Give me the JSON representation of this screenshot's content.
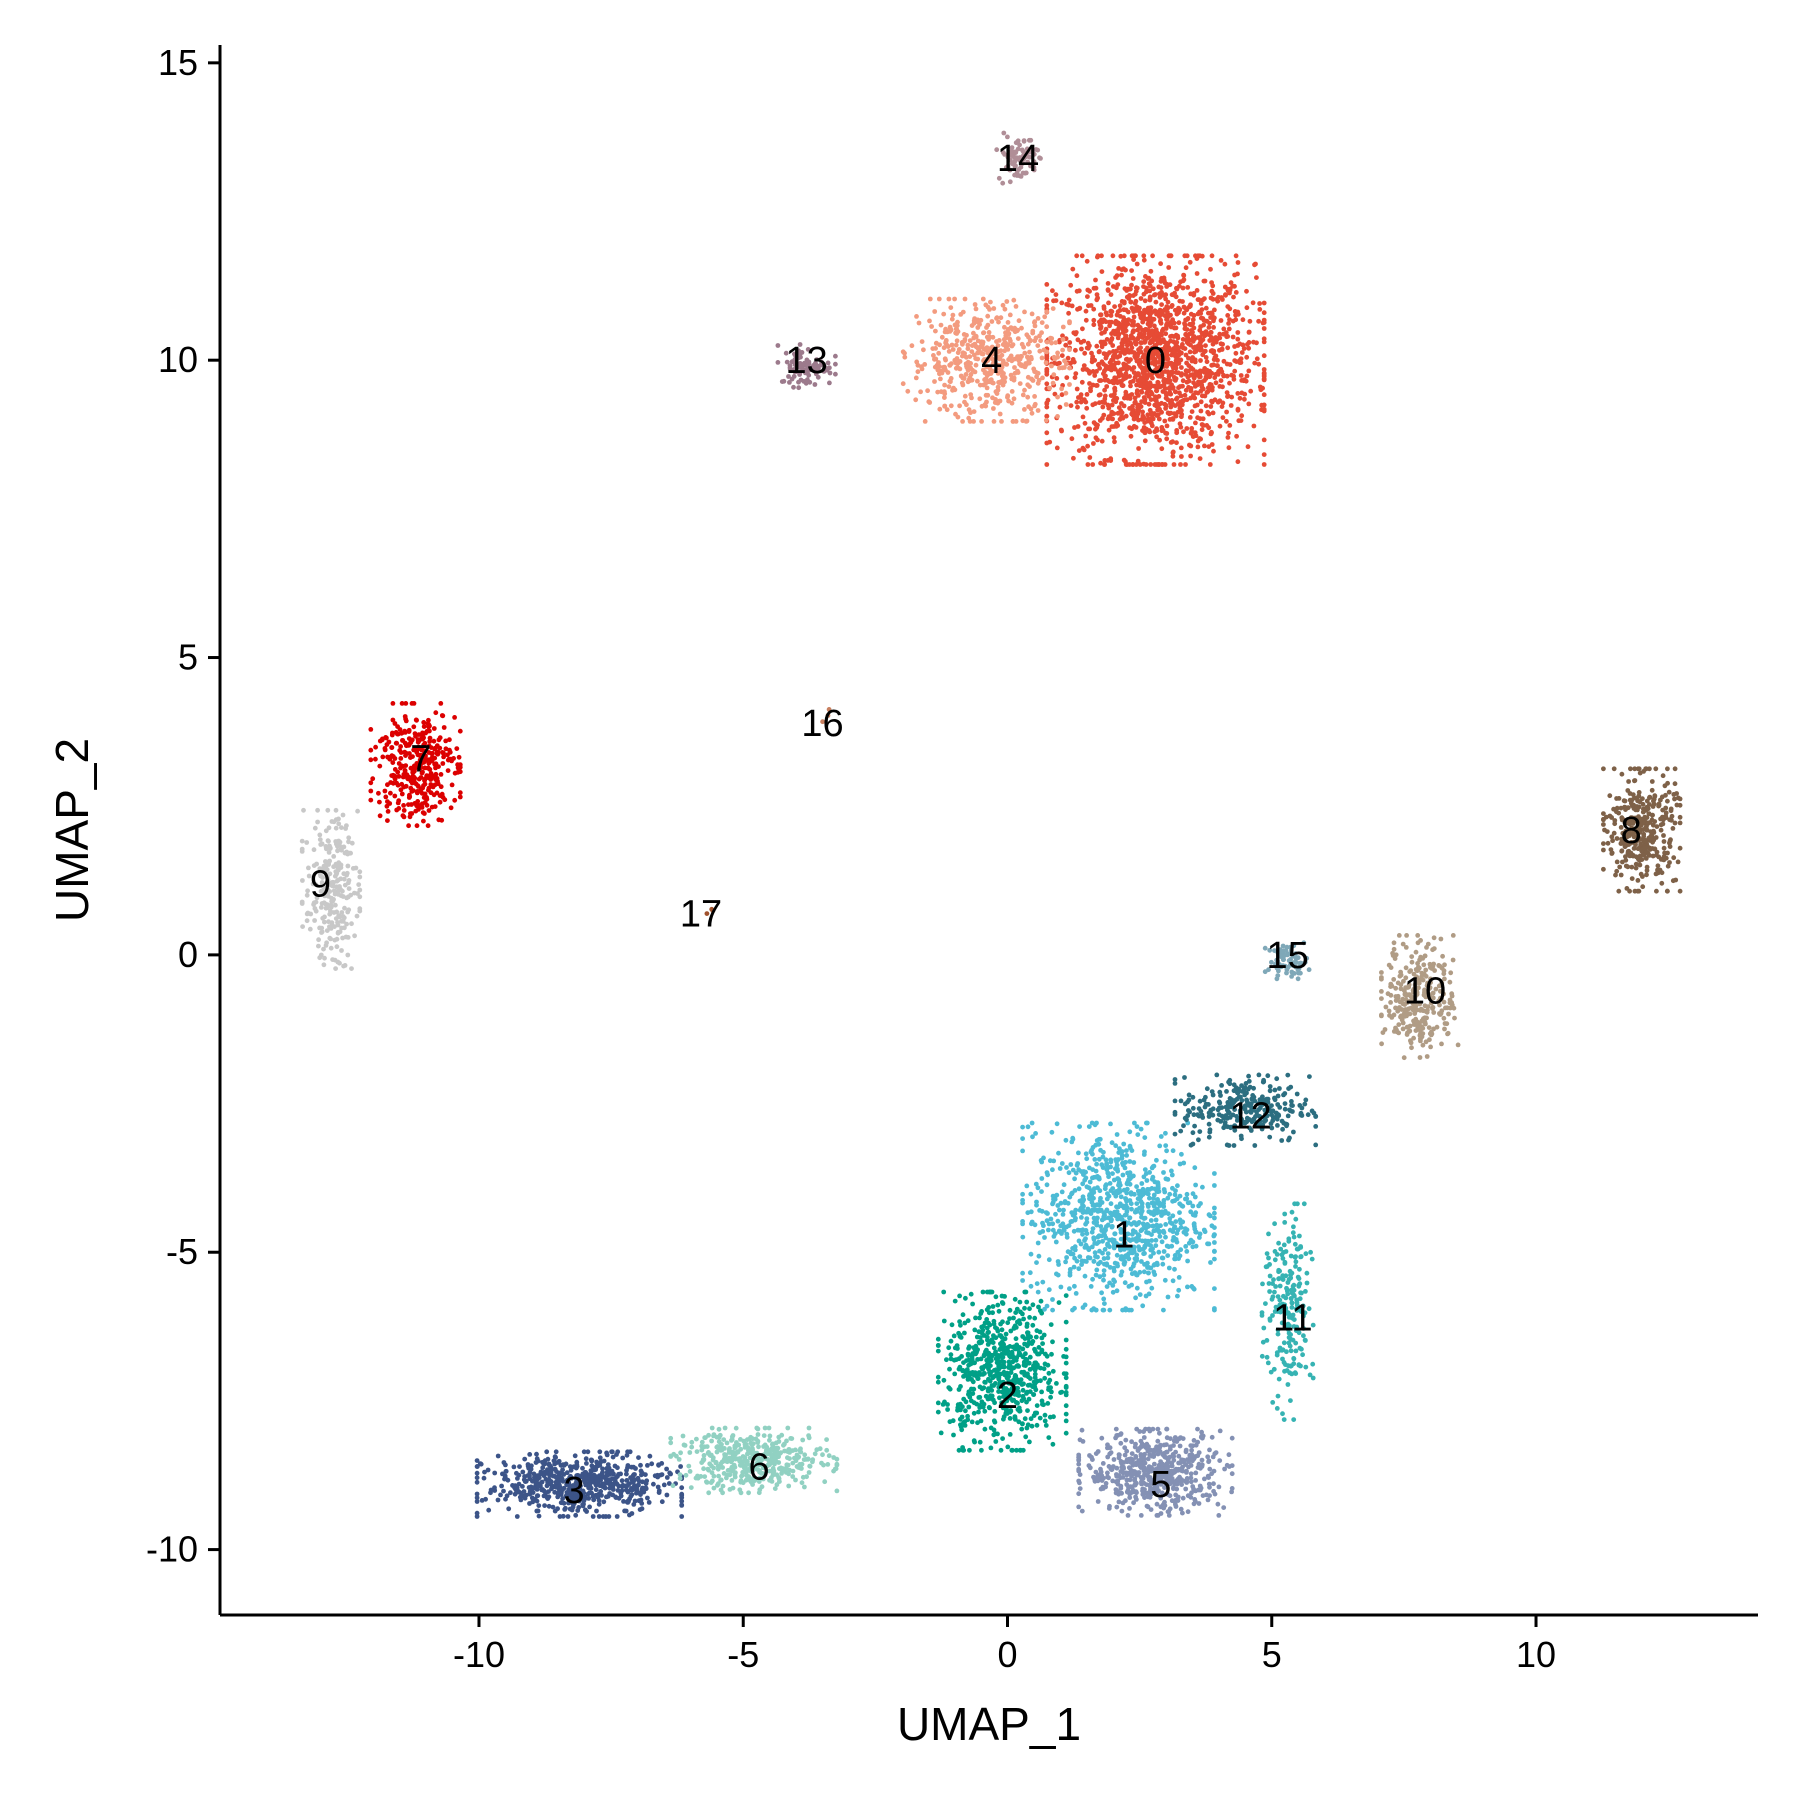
{
  "chart_data": {
    "type": "scatter",
    "title": "",
    "xlabel": "UMAP_1",
    "ylabel": "UMAP_2",
    "xlim": [
      -14.9,
      14.2
    ],
    "ylim": [
      -11.1,
      15.3
    ],
    "xticks": [
      -10,
      -5,
      0,
      5,
      10
    ],
    "yticks": [
      -10,
      -5,
      0,
      5,
      10,
      15
    ],
    "xtick_labels": [
      "-10",
      "-5",
      "0",
      "5",
      "10"
    ],
    "ytick_labels": [
      "-10",
      "-5",
      "0",
      "5",
      "10",
      "15"
    ],
    "grid": false,
    "legend": "none",
    "clusters": [
      {
        "id": "0",
        "color": "#E64B35",
        "center": [
          2.8,
          10.0
        ],
        "spread": [
          1.7,
          1.45
        ],
        "n": 1600
      },
      {
        "id": "1",
        "color": "#4DBBD5",
        "center": [
          2.1,
          -4.4
        ],
        "spread": [
          1.5,
          1.3
        ],
        "n": 900
      },
      {
        "id": "2",
        "color": "#00A087",
        "center": [
          -0.1,
          -7.0
        ],
        "spread": [
          1.0,
          1.1
        ],
        "n": 650
      },
      {
        "id": "3",
        "color": "#3C5488",
        "center": [
          -8.1,
          -8.9
        ],
        "spread": [
          1.6,
          0.45
        ],
        "n": 600
      },
      {
        "id": "4",
        "color": "#F39B7F",
        "center": [
          -0.4,
          10.0
        ],
        "spread": [
          1.3,
          0.85
        ],
        "n": 520
      },
      {
        "id": "5",
        "color": "#8491B4",
        "center": [
          2.8,
          -8.7
        ],
        "spread": [
          1.2,
          0.6
        ],
        "n": 560
      },
      {
        "id": "6",
        "color": "#91D1C2",
        "center": [
          -4.8,
          -8.5
        ],
        "spread": [
          1.3,
          0.45
        ],
        "n": 420
      },
      {
        "id": "7",
        "color": "#DC0000",
        "center": [
          -11.2,
          3.2
        ],
        "spread": [
          0.7,
          0.85
        ],
        "n": 360
      },
      {
        "id": "8",
        "color": "#7E6148",
        "center": [
          12.0,
          2.1
        ],
        "spread": [
          0.6,
          0.85
        ],
        "n": 360
      },
      {
        "id": "9",
        "color": "#C8C8C8",
        "center": [
          -12.8,
          1.1
        ],
        "spread": [
          0.45,
          1.1
        ],
        "n": 260
      },
      {
        "id": "10",
        "color": "#B09C85",
        "center": [
          7.8,
          -0.7
        ],
        "spread": [
          0.6,
          0.85
        ],
        "n": 300
      },
      {
        "id": "11",
        "color": "#36B3B3",
        "center": [
          5.3,
          -6.0
        ],
        "spread": [
          0.4,
          1.5
        ],
        "n": 220
      },
      {
        "id": "12",
        "color": "#2C6E80",
        "center": [
          4.5,
          -2.6
        ],
        "spread": [
          1.1,
          0.5
        ],
        "n": 280
      },
      {
        "id": "13",
        "color": "#9C7A8C",
        "center": [
          -3.8,
          9.9
        ],
        "spread": [
          0.45,
          0.3
        ],
        "n": 90
      },
      {
        "id": "14",
        "color": "#B08E97",
        "center": [
          0.2,
          13.4
        ],
        "spread": [
          0.35,
          0.35
        ],
        "n": 80
      },
      {
        "id": "15",
        "color": "#7FA8B8",
        "center": [
          5.3,
          -0.1
        ],
        "spread": [
          0.35,
          0.25
        ],
        "n": 70
      },
      {
        "id": "16",
        "color": "#C88060",
        "center": [
          -3.4,
          4.0
        ],
        "spread": [
          0.15,
          0.15
        ],
        "n": 3
      },
      {
        "id": "17",
        "color": "#A0522D",
        "center": [
          -5.6,
          0.7
        ],
        "spread": [
          0.08,
          0.08
        ],
        "n": 3
      }
    ],
    "labels": [
      {
        "text": "0",
        "x": 2.8,
        "y": 10.0
      },
      {
        "text": "1",
        "x": 2.2,
        "y": -4.7
      },
      {
        "text": "2",
        "x": 0.0,
        "y": -7.4
      },
      {
        "text": "3",
        "x": -8.2,
        "y": -9.0
      },
      {
        "text": "4",
        "x": -0.3,
        "y": 10.0
      },
      {
        "text": "5",
        "x": 2.9,
        "y": -8.9
      },
      {
        "text": "6",
        "x": -4.7,
        "y": -8.6
      },
      {
        "text": "7",
        "x": -11.1,
        "y": 3.3
      },
      {
        "text": "8",
        "x": 11.8,
        "y": 2.1
      },
      {
        "text": "9",
        "x": -13.0,
        "y": 1.2
      },
      {
        "text": "10",
        "x": 7.9,
        "y": -0.6
      },
      {
        "text": "11",
        "x": 5.4,
        "y": -6.1
      },
      {
        "text": "12",
        "x": 4.6,
        "y": -2.7
      },
      {
        "text": "13",
        "x": -3.8,
        "y": 10.0
      },
      {
        "text": "14",
        "x": 0.2,
        "y": 13.4
      },
      {
        "text": "15",
        "x": 5.3,
        "y": 0.0
      },
      {
        "text": "16",
        "x": -3.5,
        "y": 3.9
      },
      {
        "text": "17",
        "x": -5.8,
        "y": 0.7
      }
    ]
  }
}
